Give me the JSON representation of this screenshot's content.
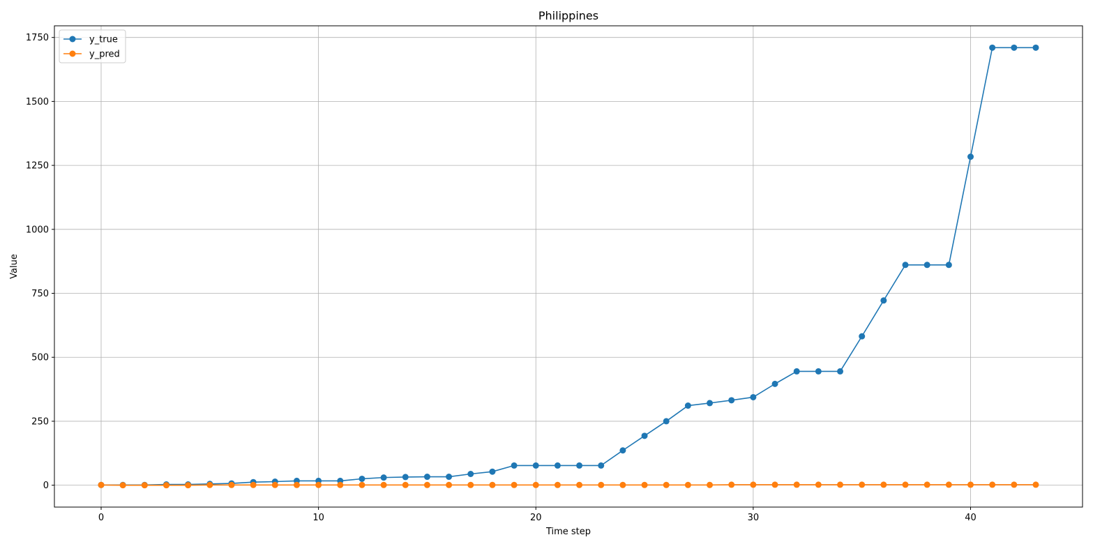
{
  "chart_data": {
    "type": "line",
    "title": "Philippines",
    "xlabel": "Time step",
    "ylabel": "Value",
    "xlim": [
      -2.15,
      45.15
    ],
    "ylim": [
      -85.5,
      1795.5
    ],
    "xticks": [
      0,
      10,
      20,
      30,
      40
    ],
    "yticks": [
      0,
      250,
      500,
      750,
      1000,
      1250,
      1500,
      1750
    ],
    "grid": true,
    "legend_position": "top-left",
    "series": [
      {
        "name": "y_true",
        "color": "#1f77b4",
        "marker": "circle",
        "x": [
          0,
          1,
          2,
          3,
          4,
          5,
          6,
          7,
          8,
          9,
          10,
          11,
          12,
          13,
          14,
          15,
          16,
          17,
          18,
          19,
          20,
          21,
          22,
          23,
          24,
          25,
          26,
          27,
          28,
          29,
          30,
          31,
          32,
          33,
          34,
          35,
          36,
          37,
          38,
          39,
          40,
          41,
          42,
          43
        ],
        "values": [
          1,
          1,
          1,
          3,
          3,
          5,
          7,
          12,
          14,
          17,
          17,
          17,
          25,
          30,
          32,
          33,
          33,
          44,
          53,
          77,
          77,
          77,
          77,
          77,
          136,
          193,
          250,
          311,
          321,
          332,
          344,
          396,
          445,
          445,
          445,
          582,
          722,
          861,
          861,
          861,
          1284,
          1710,
          1710,
          1710
        ]
      },
      {
        "name": "y_pred",
        "color": "#ff7f0e",
        "marker": "circle",
        "x": [
          0,
          1,
          2,
          3,
          4,
          5,
          6,
          7,
          8,
          9,
          10,
          11,
          12,
          13,
          14,
          15,
          16,
          17,
          18,
          19,
          20,
          21,
          22,
          23,
          24,
          25,
          26,
          27,
          28,
          29,
          30,
          31,
          32,
          33,
          34,
          35,
          36,
          37,
          38,
          39,
          40,
          41,
          42,
          43
        ],
        "values": [
          1,
          0,
          0,
          0,
          0,
          1,
          1,
          1,
          1,
          1,
          1,
          1,
          1,
          1,
          1,
          1,
          1,
          1,
          1,
          1,
          1,
          1,
          1,
          1,
          1,
          1,
          1,
          1,
          1,
          2,
          2,
          2,
          2,
          2,
          2,
          2,
          2,
          2,
          2,
          2,
          2,
          2,
          2,
          2
        ]
      }
    ]
  }
}
